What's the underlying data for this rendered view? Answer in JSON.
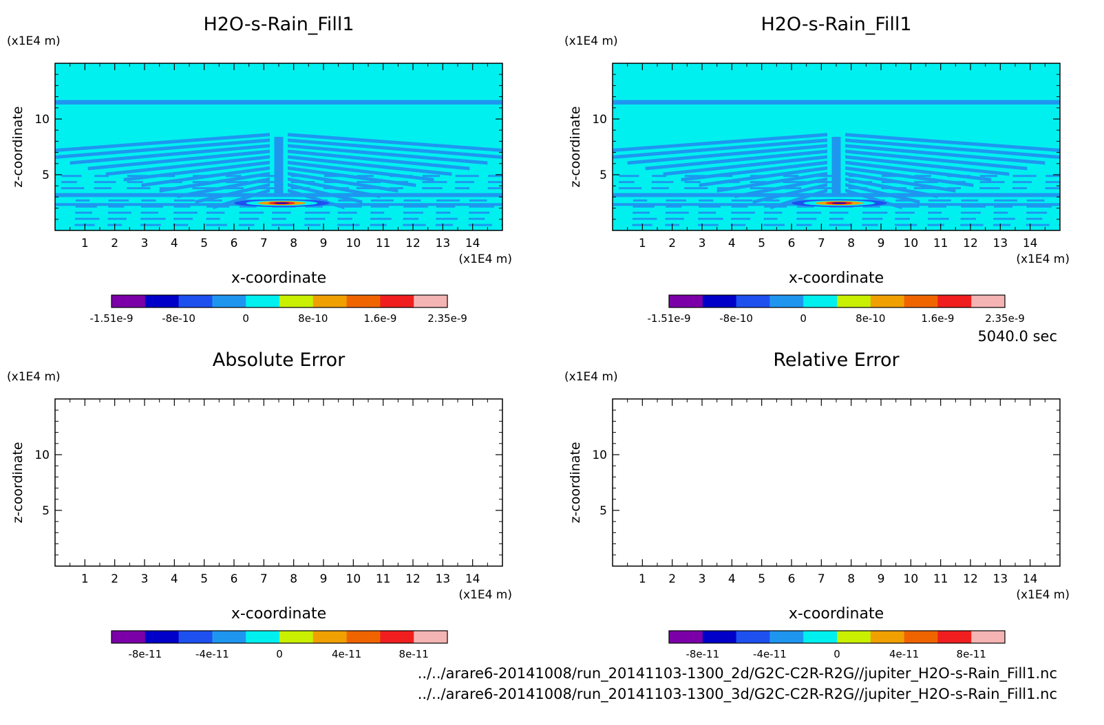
{
  "figure": {
    "time_label": "5040.0 sec",
    "files": [
      "../../arare6-20141008/run_20141103-1300_2d/G2C-C2R-R2G//jupiter_H2O-s-Rain_Fill1.nc",
      "../../arare6-20141008/run_20141103-1300_3d/G2C-C2R-R2G//jupiter_H2O-s-Rain_Fill1.nc"
    ]
  },
  "chart_data": [
    {
      "type": "heatmap",
      "title": "H2O-s-Rain_Fill1",
      "xlabel": "x-coordinate",
      "ylabel": "z-coordinate",
      "x_unit": "(x1E4 m)",
      "y_unit": "(x1E4 m)",
      "xlim": [
        0,
        15
      ],
      "ylim": [
        0,
        15
      ],
      "x_ticks": [
        1,
        2,
        3,
        4,
        5,
        6,
        7,
        8,
        9,
        10,
        11,
        12,
        13,
        14
      ],
      "y_ticks": [
        5,
        10
      ],
      "field": "wave",
      "colorbar": {
        "colors": [
          "#7b00a8",
          "#0000c8",
          "#1e50f0",
          "#1e96f0",
          "#00f0f0",
          "#c8f000",
          "#f0a000",
          "#f06400",
          "#f01e1e",
          "#f5b4b4"
        ],
        "tick_labels": [
          "-1.51e-9",
          "-8e-10",
          "0",
          "8e-10",
          "1.6e-9",
          "2.35e-9"
        ]
      }
    },
    {
      "type": "heatmap",
      "title": "H2O-s-Rain_Fill1",
      "xlabel": "x-coordinate",
      "ylabel": "z-coordinate",
      "x_unit": "(x1E4 m)",
      "y_unit": "(x1E4 m)",
      "xlim": [
        0,
        15
      ],
      "ylim": [
        0,
        15
      ],
      "x_ticks": [
        1,
        2,
        3,
        4,
        5,
        6,
        7,
        8,
        9,
        10,
        11,
        12,
        13,
        14
      ],
      "y_ticks": [
        5,
        10
      ],
      "field": "wave",
      "colorbar": {
        "colors": [
          "#7b00a8",
          "#0000c8",
          "#1e50f0",
          "#1e96f0",
          "#00f0f0",
          "#c8f000",
          "#f0a000",
          "#f06400",
          "#f01e1e",
          "#f5b4b4"
        ],
        "tick_labels": [
          "-1.51e-9",
          "-8e-10",
          "0",
          "8e-10",
          "1.6e-9",
          "2.35e-9"
        ]
      }
    },
    {
      "type": "heatmap",
      "title": "Absolute Error",
      "xlabel": "x-coordinate",
      "ylabel": "z-coordinate",
      "x_unit": "(x1E4 m)",
      "y_unit": "(x1E4 m)",
      "xlim": [
        0,
        15
      ],
      "ylim": [
        0,
        15
      ],
      "x_ticks": [
        1,
        2,
        3,
        4,
        5,
        6,
        7,
        8,
        9,
        10,
        11,
        12,
        13,
        14
      ],
      "y_ticks": [
        5,
        10
      ],
      "field": "empty",
      "colorbar": {
        "colors": [
          "#7b00a8",
          "#0000c8",
          "#1e50f0",
          "#1e96f0",
          "#00f0f0",
          "#c8f000",
          "#f0a000",
          "#f06400",
          "#f01e1e",
          "#f5b4b4"
        ],
        "tick_labels": [
          "-8e-11",
          "-4e-11",
          "0",
          "4e-11",
          "8e-11"
        ]
      }
    },
    {
      "type": "heatmap",
      "title": "Relative Error",
      "xlabel": "x-coordinate",
      "ylabel": "z-coordinate",
      "x_unit": "(x1E4 m)",
      "y_unit": "(x1E4 m)",
      "xlim": [
        0,
        15
      ],
      "ylim": [
        0,
        15
      ],
      "x_ticks": [
        1,
        2,
        3,
        4,
        5,
        6,
        7,
        8,
        9,
        10,
        11,
        12,
        13,
        14
      ],
      "y_ticks": [
        5,
        10
      ],
      "field": "empty",
      "colorbar": {
        "colors": [
          "#7b00a8",
          "#0000c8",
          "#1e50f0",
          "#1e96f0",
          "#00f0f0",
          "#c8f000",
          "#f0a000",
          "#f06400",
          "#f01e1e",
          "#f5b4b4"
        ],
        "tick_labels": [
          "-8e-11",
          "-4e-11",
          "0",
          "4e-11",
          "8e-11"
        ]
      }
    }
  ]
}
